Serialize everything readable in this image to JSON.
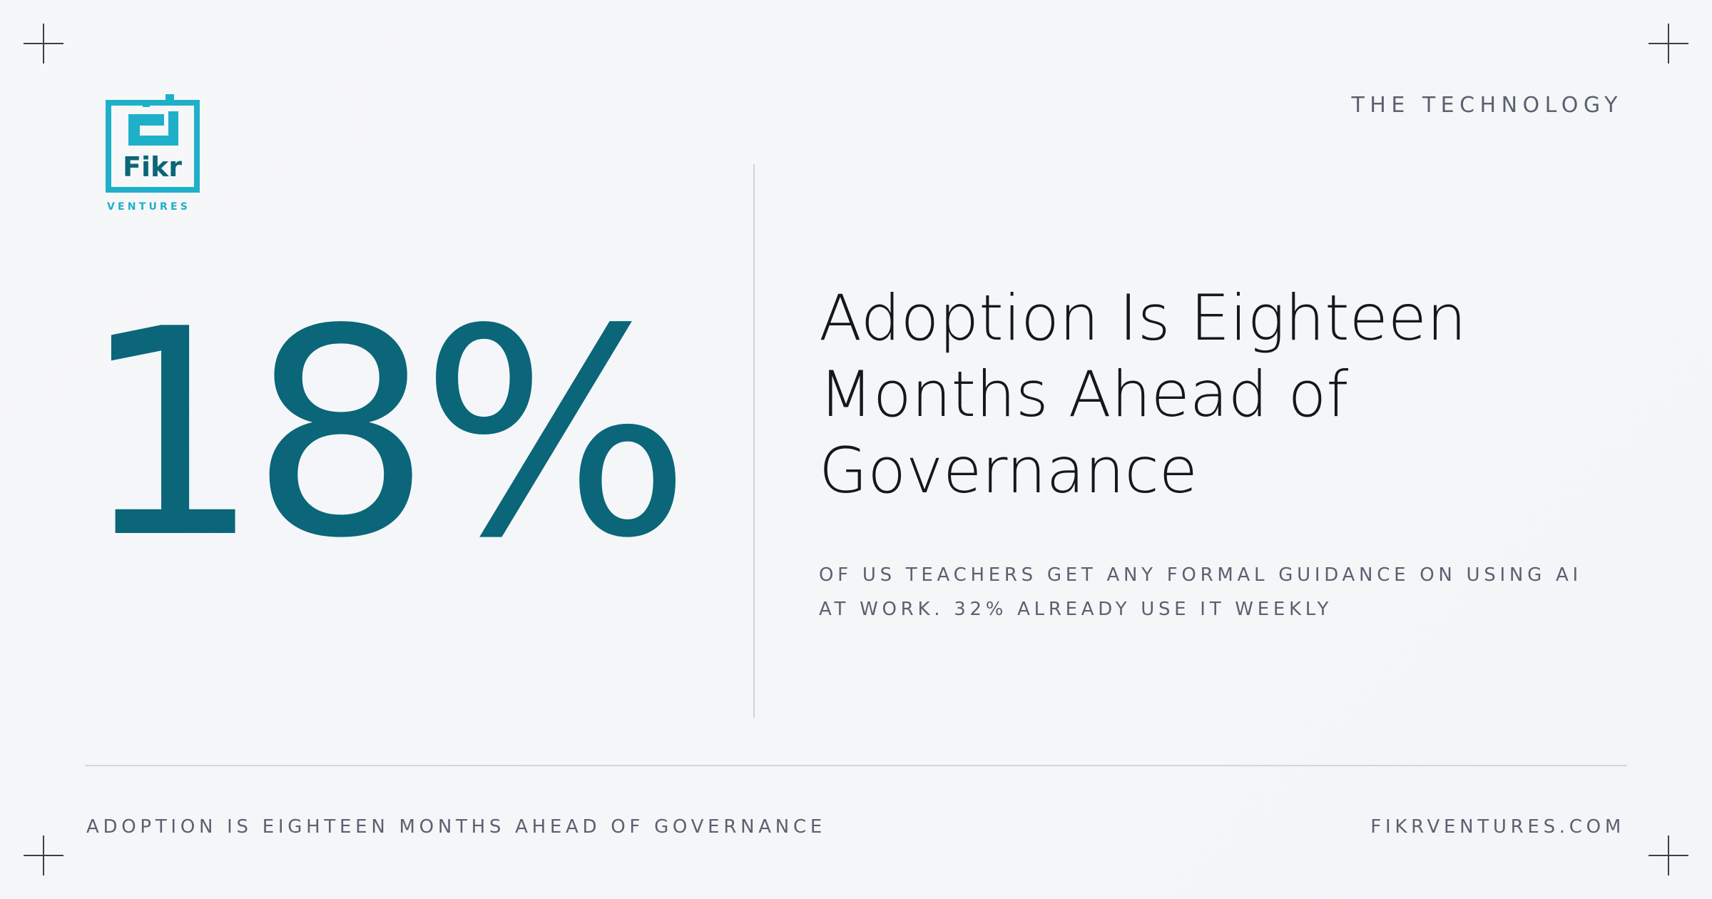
{
  "header": {
    "section": "THE TECHNOLOGY"
  },
  "logo": {
    "name": "Fikr",
    "sub": "VENTURES"
  },
  "stat": {
    "figure": "18%",
    "headline": "Adoption Is Eighteen Months Ahead of Governance",
    "detail": "OF US TEACHERS GET ANY FORMAL GUIDANCE ON USING AI AT WORK. 32% ALREADY USE IT WEEKLY"
  },
  "footer": {
    "left": "ADOPTION IS EIGHTEEN MONTHS AHEAD OF GOVERNANCE",
    "right": "FIKRVENTURES.COM"
  }
}
